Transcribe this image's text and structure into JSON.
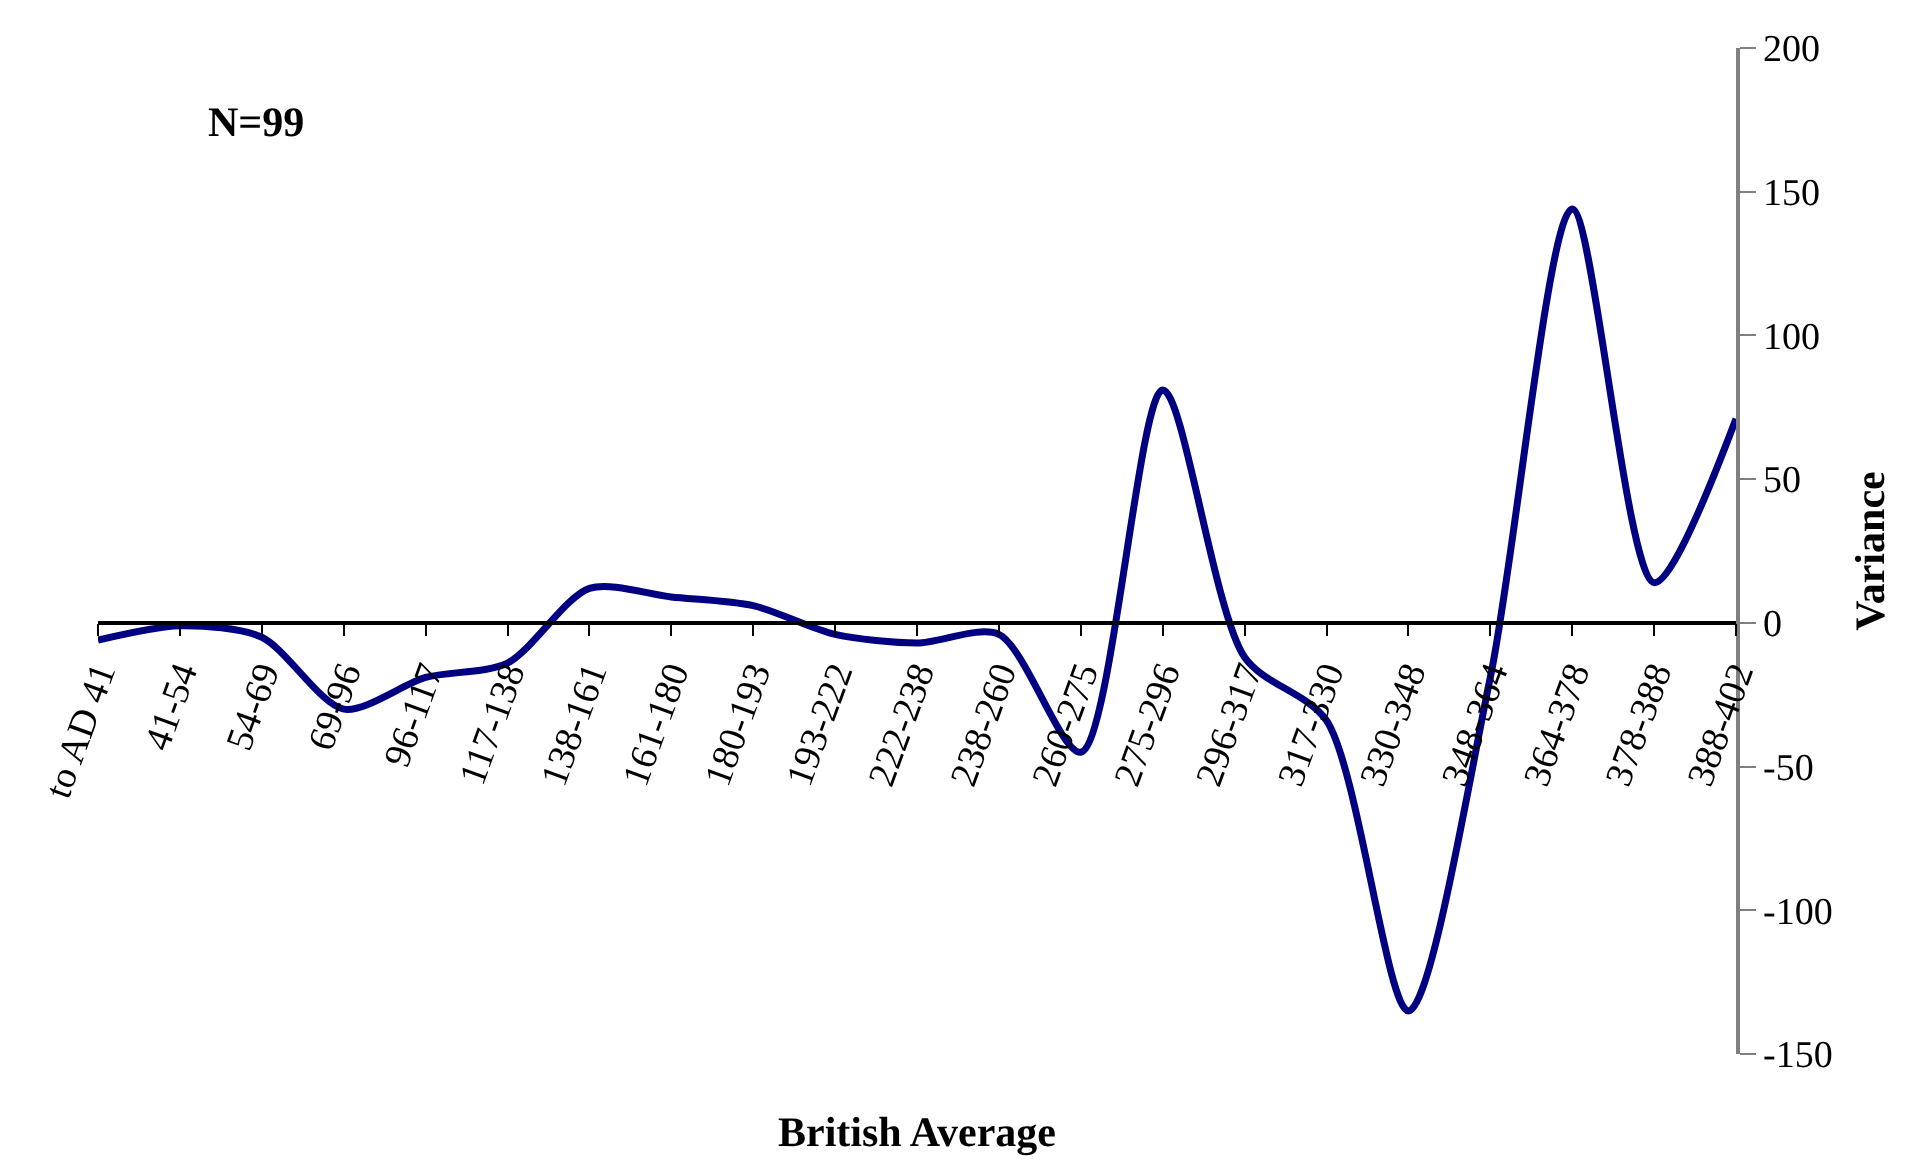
{
  "chart_data": {
    "type": "line",
    "xlabel": "British Average",
    "ylabel": "Variance",
    "annotations": [
      "N=99"
    ],
    "categories": [
      "to AD 41",
      "41-54",
      "54-69",
      "69-96",
      "96-117",
      "117-138",
      "138-161",
      "161-180",
      "180-193",
      "193-222",
      "222-238",
      "238-260",
      "260-275",
      "275-296",
      "296-317",
      "317-330",
      "330-348",
      "348-364",
      "364-378",
      "378-388",
      "388-402"
    ],
    "series": [
      {
        "color": "#000080",
        "values": [
          -6,
          -1,
          -5,
          -30,
          -19,
          -14,
          12,
          9,
          6,
          -4,
          -7,
          -4,
          -45,
          81,
          -12,
          -34,
          -135,
          -19,
          144,
          14,
          71
        ]
      }
    ],
    "ylim": [
      -150,
      200
    ],
    "yticks": [
      -150,
      -100,
      -50,
      0,
      50,
      100,
      150,
      200
    ],
    "legend": false,
    "marker": "none",
    "line_style": "solid"
  }
}
